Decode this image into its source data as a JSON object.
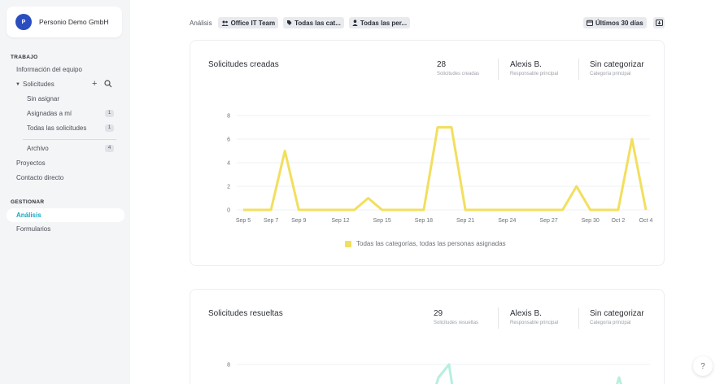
{
  "sidebar": {
    "org_initial": "P",
    "org_name": "Personio Demo GmbH",
    "section_work": "TRABAJO",
    "team_info": "Información del equipo",
    "requests": "Solicitudes",
    "unassigned": "Sin asignar",
    "assigned_to_me": "Asignadas a mí",
    "assigned_to_me_count": "1",
    "all_requests": "Todas las solicitudes",
    "all_requests_count": "1",
    "archive": "Archivo",
    "archive_count": "4",
    "projects": "Proyectos",
    "direct_contact": "Contacto directo",
    "section_manage": "GESTIONAR",
    "analysis": "Análisis",
    "forms": "Formularios"
  },
  "filters": {
    "label": "Análisis",
    "team": "Office IT Team",
    "categories": "Todas las cat...",
    "people": "Todas las per...",
    "range": "Últimos 30 días"
  },
  "created": {
    "title": "Solicitudes creadas",
    "stats": [
      {
        "value": "28",
        "label": "Solicitudes creadas"
      },
      {
        "value": "Alexis B.",
        "label": "Responsable principal"
      },
      {
        "value": "Sin categorizar",
        "label": "Categoría principal"
      }
    ],
    "legend": "Todas las categorías, todas las personas asignadas"
  },
  "resolved": {
    "title": "Solicitudes resueltas",
    "stats": [
      {
        "value": "29",
        "label": "Solicitudes resueltas"
      },
      {
        "value": "Alexis B.",
        "label": "Responsable principal"
      },
      {
        "value": "Sin categorizar",
        "label": "Categoría principal"
      }
    ]
  },
  "help_label": "?",
  "colors": {
    "accent": "#17a7c2",
    "series": "#f2df5e",
    "series_resolved": "#b6efe0"
  },
  "chart_data": [
    {
      "type": "line",
      "title": "Solicitudes creadas",
      "x": [
        "Sep 5",
        "Sep 6",
        "Sep 7",
        "Sep 8",
        "Sep 9",
        "Sep 10",
        "Sep 11",
        "Sep 12",
        "Sep 13",
        "Sep 14",
        "Sep 15",
        "Sep 16",
        "Sep 17",
        "Sep 18",
        "Sep 19",
        "Sep 20",
        "Sep 21",
        "Sep 22",
        "Sep 23",
        "Sep 24",
        "Sep 25",
        "Sep 26",
        "Sep 27",
        "Sep 28",
        "Sep 29",
        "Sep 30",
        "Oct 1",
        "Oct 2",
        "Oct 3",
        "Oct 4"
      ],
      "x_tick_labels": [
        "Sep 5",
        "Sep 7",
        "Sep 9",
        "Sep 12",
        "Sep 15",
        "Sep 18",
        "Sep 21",
        "Sep 24",
        "Sep 27",
        "Sep 30",
        "Oct 2",
        "Oct 4"
      ],
      "y_ticks": [
        0,
        2,
        4,
        6,
        8
      ],
      "ylim": [
        0,
        8
      ],
      "grid": true,
      "legend_position": "bottom",
      "series": [
        {
          "name": "Todas las categorías, todas las personas asignadas",
          "values": [
            0,
            0,
            0,
            5,
            0,
            0,
            0,
            0,
            0,
            1,
            0,
            0,
            0,
            0,
            7,
            7,
            0,
            0,
            0,
            0,
            0,
            0,
            0,
            0,
            2,
            0,
            0,
            0,
            6,
            0
          ]
        }
      ]
    },
    {
      "type": "line",
      "title": "Solicitudes resueltas",
      "y_ticks": [
        8
      ],
      "grid": true
    }
  ]
}
